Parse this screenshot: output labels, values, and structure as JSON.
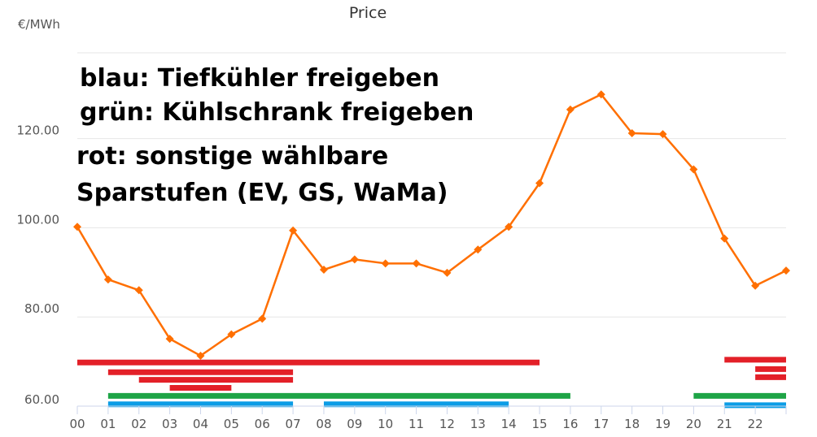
{
  "chart_data": {
    "type": "line",
    "title": "Price",
    "ylabel": "€/MWh",
    "xlabel": "",
    "ylim": [
      60,
      130
    ],
    "grid": true,
    "y_ticks": [
      {
        "label": "60.00",
        "value": 60
      },
      {
        "label": "80.00",
        "value": 80
      },
      {
        "label": "100.00",
        "value": 100
      },
      {
        "label": "120.00",
        "value": 120
      }
    ],
    "categories": [
      "00",
      "01",
      "02",
      "03",
      "04",
      "05",
      "06",
      "07",
      "08",
      "09",
      "10",
      "11",
      "12",
      "13",
      "14",
      "15",
      "16",
      "17",
      "18",
      "19",
      "20",
      "21",
      "22",
      "23"
    ],
    "x_tick_labels": [
      "00",
      "01",
      "02",
      "03",
      "04",
      "05",
      "06",
      "07",
      "08",
      "09",
      "10",
      "11",
      "12",
      "13",
      "14",
      "15",
      "16",
      "17",
      "18",
      "19",
      "20",
      "21",
      "22"
    ],
    "series": [
      {
        "color": "#ff6f00",
        "marker": "diamond",
        "values": [
          100.2,
          88.4,
          86.0,
          75.1,
          71.3,
          76.1,
          79.6,
          99.4,
          90.6,
          92.9,
          92.0,
          92.0,
          89.9,
          95.1,
          100.2,
          110.0,
          126.5,
          129.9,
          121.2,
          121.0,
          113.1,
          97.6,
          87.0,
          90.4
        ]
      }
    ],
    "bands": [
      {
        "color": "#e32028",
        "level": 69.8,
        "x_start": 0,
        "x_end": 15
      },
      {
        "color": "#e32028",
        "level": 67.6,
        "x_start": 1,
        "x_end": 7
      },
      {
        "color": "#e32028",
        "level": 65.9,
        "x_start": 2,
        "x_end": 7
      },
      {
        "color": "#e32028",
        "level": 64.1,
        "x_start": 3,
        "x_end": 5
      },
      {
        "color": "#e32028",
        "level": 70.4,
        "x_start": 21,
        "x_end": 23
      },
      {
        "color": "#e32028",
        "level": 68.3,
        "x_start": 22,
        "x_end": 23
      },
      {
        "color": "#e32028",
        "level": 66.5,
        "x_start": 22,
        "x_end": 23
      },
      {
        "color": "#1ea446",
        "level": 62.3,
        "x_start": 1,
        "x_end": 16
      },
      {
        "color": "#1ea446",
        "level": 62.3,
        "x_start": 20,
        "x_end": 23
      },
      {
        "color": "#0b9de6",
        "level": 60.4,
        "x_start": 1,
        "x_end": 7
      },
      {
        "color": "#0b9de6",
        "level": 60.4,
        "x_start": 8,
        "x_end": 14
      },
      {
        "color": "#0b9de6",
        "level": 60.2,
        "x_start": 21,
        "x_end": 23
      }
    ],
    "annotations": [
      "blau: Tiefkühler freigeben",
      "grün: Kühlschrank freigeben",
      "rot: sonstige wählbare",
      "Sparstufen (EV, GS, WaMa)"
    ]
  },
  "colors": {
    "line": "#ff6f00",
    "red": "#e32028",
    "green": "#1ea446",
    "blue": "#0b9de6",
    "grid": "#e6e6e6",
    "axis": "#ccd6eb"
  }
}
